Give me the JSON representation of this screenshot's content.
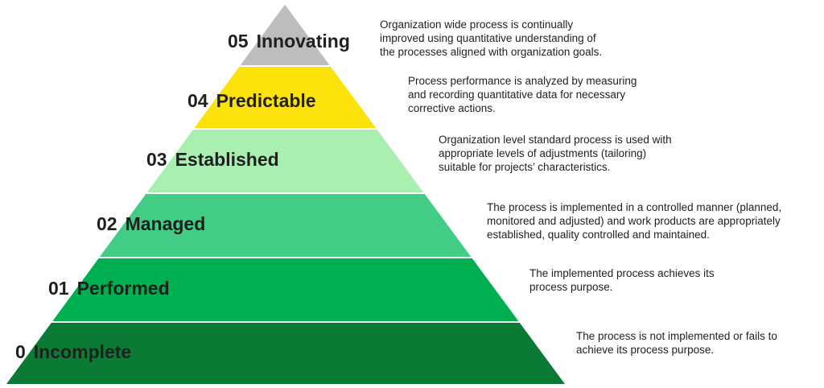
{
  "levels": [
    {
      "number": "05",
      "name": "Innovating",
      "color": "#bdbdbd",
      "description": "Organization wide process is continually\nimproved using quantitative understanding of\nthe processes aligned with organization goals."
    },
    {
      "number": "04",
      "name": "Predictable",
      "color": "#fbe20a",
      "description": "Process performance is analyzed by measuring\nand recording quantitative data for necessary\ncorrective actions."
    },
    {
      "number": "03",
      "name": "Established",
      "color": "#a9f0b0",
      "description": "Organization level standard process is used with\nappropriate levels of adjustments (tailoring)\nsuitable for projects’ characteristics."
    },
    {
      "number": "02",
      "name": "Managed",
      "color": "#43cc86",
      "description": "The process is implemented in a controlled manner (planned,\nmonitored and adjusted) and work products are appropriately\nestablished, quality controlled and maintained."
    },
    {
      "number": "01",
      "name": "Performed",
      "color": "#00b050",
      "description": "The implemented process achieves its\nprocess purpose."
    },
    {
      "number": "0",
      "name": "Incomplete",
      "color": "#0b7a35",
      "description": "The process is not implemented or fails to\nachieve its process purpose."
    }
  ]
}
